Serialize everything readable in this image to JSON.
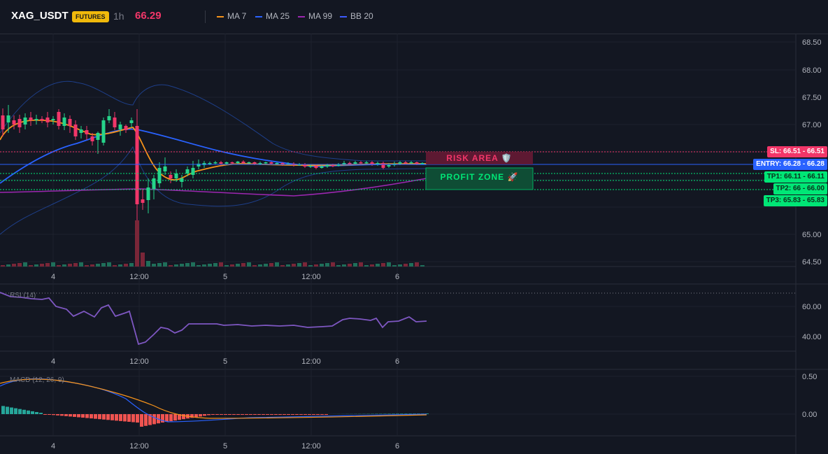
{
  "header": {
    "symbol": "XAG_USDT",
    "badge": "FUTURES",
    "interval": "1h",
    "price": "66.29",
    "legend": [
      {
        "label": "MA 7",
        "color": "#f7931a"
      },
      {
        "label": "MA 25",
        "color": "#2962ff"
      },
      {
        "label": "MA 99",
        "color": "#9c27b0"
      },
      {
        "label": "BB 20",
        "color": "#1e3f8a"
      }
    ]
  },
  "price_axis": [
    "68.50",
    "68.00",
    "67.50",
    "67.00",
    "65.00",
    "64.50"
  ],
  "time_axis": [
    "4",
    "12:00",
    "5",
    "12:00",
    "6"
  ],
  "rsi": {
    "label": "RSI (14)",
    "ticks": [
      "60.00",
      "40.00"
    ]
  },
  "macd": {
    "label": "MACD (12, 26, 9)",
    "ticks": [
      "0.50",
      "0.00"
    ]
  },
  "trade": {
    "sl": {
      "label": "SL: 66.51",
      "value": "66.51"
    },
    "entry": {
      "label": "ENTRY: 66.28",
      "value": "66.28"
    },
    "tp1": {
      "label": "TP1: 66.11",
      "value": "66.11"
    },
    "tp2": {
      "label": "TP2: 66",
      "value": "66.00"
    },
    "tp3": {
      "label": "TP3: 65.83",
      "value": "65.83"
    },
    "risk_label": "RISK AREA",
    "risk_icon": "🛡️",
    "profit_label": "PROFIT ZONE",
    "profit_icon": "🚀"
  },
  "colors": {
    "up": "#26d48a",
    "down": "#f23669",
    "sl": "#f23669",
    "entry": "#2962ff",
    "tp": "#00e676",
    "bg": "#131722"
  }
}
